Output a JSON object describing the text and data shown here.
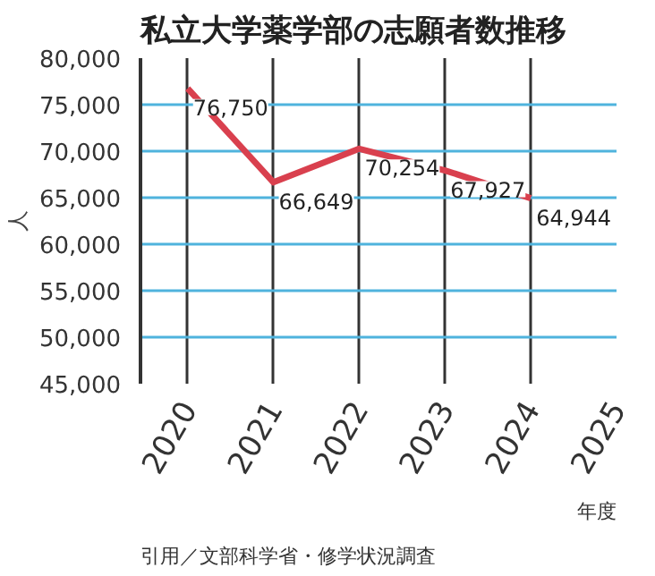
{
  "chart_data": {
    "type": "line",
    "title": "私立大学薬学部の志願者数推移",
    "xlabel": "年度",
    "ylabel": "人",
    "x": [
      2020,
      2021,
      2022,
      2023,
      2024
    ],
    "series": [
      {
        "color": "#d9404e",
        "values": [
          76750,
          66649,
          70254,
          67927,
          64944
        ]
      }
    ],
    "xlim": [
      2019.45,
      2025
    ],
    "xticks": [
      2020,
      2021,
      2022,
      2023,
      2024,
      2025
    ],
    "ylim": [
      45000,
      80000
    ],
    "yticks": [
      {
        "value": 45000,
        "label": "45,000"
      },
      {
        "value": 50000,
        "label": "50,000"
      },
      {
        "value": 55000,
        "label": "55,000"
      },
      {
        "value": 60000,
        "label": "60,000"
      },
      {
        "value": 65000,
        "label": "65,000"
      },
      {
        "value": 70000,
        "label": "70,000"
      },
      {
        "value": 75000,
        "label": "75,000"
      },
      {
        "value": 80000,
        "label": "80,000"
      }
    ],
    "value_labels": [
      "76,750",
      "66,649",
      "70,254",
      "67,927",
      "64,944"
    ],
    "grid": true,
    "marker": "none",
    "line_style": "solid",
    "annotations": [
      "引用／文部科学省・修学状況調査"
    ]
  }
}
